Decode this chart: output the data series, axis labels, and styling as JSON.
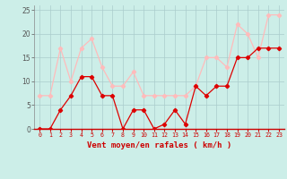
{
  "x": [
    0,
    1,
    2,
    3,
    4,
    5,
    6,
    7,
    8,
    9,
    10,
    11,
    12,
    13,
    14,
    15,
    16,
    17,
    18,
    19,
    20,
    21,
    22,
    23
  ],
  "wind_avg": [
    0,
    0,
    4,
    7,
    11,
    11,
    7,
    7,
    0,
    4,
    4,
    0,
    1,
    4,
    1,
    9,
    7,
    9,
    9,
    15,
    15,
    17,
    17,
    17
  ],
  "wind_gust": [
    7,
    7,
    17,
    10,
    17,
    19,
    13,
    9,
    9,
    12,
    7,
    7,
    7,
    7,
    7,
    9,
    15,
    15,
    13,
    22,
    20,
    15,
    24,
    24
  ],
  "avg_color": "#dd0000",
  "gust_color": "#ffbbbb",
  "bg_color": "#cceee8",
  "grid_color": "#aacccc",
  "xlabel": "Vent moyen/en rafales ( km/h )",
  "xlim": [
    -0.5,
    23.5
  ],
  "ylim": [
    0,
    26
  ],
  "yticks": [
    0,
    5,
    10,
    15,
    20,
    25
  ],
  "xticks": [
    0,
    1,
    2,
    3,
    4,
    5,
    6,
    7,
    8,
    9,
    10,
    11,
    12,
    13,
    14,
    15,
    16,
    17,
    18,
    19,
    20,
    21,
    22,
    23
  ]
}
